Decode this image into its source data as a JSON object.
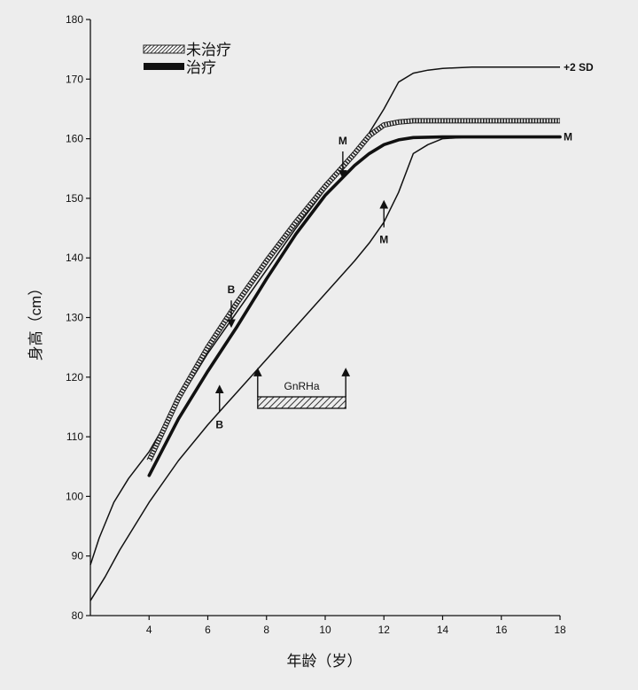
{
  "chart_data": {
    "type": "line",
    "title": "",
    "xlabel": "年龄（岁）",
    "ylabel": "身高（cm）",
    "xlim": [
      2,
      18
    ],
    "ylim": [
      80,
      180
    ],
    "xticks": [
      4,
      6,
      8,
      10,
      12,
      14,
      16,
      18
    ],
    "yticks": [
      80,
      90,
      100,
      110,
      120,
      130,
      140,
      150,
      160,
      170,
      180
    ],
    "legend": {
      "placement": "top-left",
      "entries": [
        {
          "label": "未治疗",
          "style": "hatched-thick"
        },
        {
          "label": "治疗",
          "style": "solid-thick"
        }
      ]
    },
    "series": [
      {
        "name": "+2 SD",
        "style": "thin",
        "x": [
          2,
          2.3,
          2.8,
          3.3,
          4,
          5,
          6,
          7,
          8,
          9,
          10,
          11,
          11.5,
          12,
          12.5,
          13,
          13.5,
          14,
          15,
          16,
          18
        ],
        "y": [
          88.5,
          93,
          99,
          103,
          107.5,
          116,
          124,
          131,
          138,
          145,
          151.5,
          157.5,
          161,
          165,
          169.5,
          171,
          171.5,
          171.8,
          172,
          172,
          172
        ]
      },
      {
        "name": "M",
        "style": "thin",
        "x": [
          2,
          2.5,
          3,
          4,
          5,
          6,
          7,
          8,
          9,
          10,
          11,
          11.5,
          12,
          12.5,
          13,
          13.5,
          14,
          15,
          16,
          18
        ],
        "y": [
          82.5,
          86.5,
          91,
          99,
          106,
          112,
          117.5,
          123,
          128.5,
          134,
          139.5,
          142.5,
          146,
          151,
          157.5,
          159,
          160,
          160.3,
          160.3,
          160.3
        ]
      },
      {
        "name": "未治疗",
        "style": "hatched",
        "x": [
          4,
          5,
          6,
          7,
          8,
          9,
          10,
          11,
          11.5,
          12,
          12.5,
          13,
          14,
          15,
          16,
          18
        ],
        "y": [
          106,
          116.5,
          125,
          132.5,
          139.5,
          146,
          152,
          157.5,
          160.5,
          162.3,
          162.8,
          163,
          163,
          163,
          163,
          163
        ]
      },
      {
        "name": "治疗",
        "style": "solid",
        "x": [
          4,
          5,
          6,
          7,
          8,
          9,
          10,
          11,
          11.5,
          12,
          12.5,
          13,
          14,
          15,
          16,
          18
        ],
        "y": [
          103.5,
          113,
          121,
          128.5,
          136.5,
          144,
          150.5,
          155.5,
          157.5,
          159,
          159.8,
          160.2,
          160.3,
          160.3,
          160.3,
          160.3
        ]
      }
    ],
    "end_labels": [
      {
        "text": "+2 SD",
        "x": 18,
        "y": 172
      },
      {
        "text": "M",
        "x": 18,
        "y": 160.3
      }
    ],
    "annotations": [
      {
        "text": "B",
        "x": 6.8,
        "y": 129,
        "direction": "down"
      },
      {
        "text": "B",
        "x": 6.4,
        "y": 118,
        "direction": "up"
      },
      {
        "text": "M",
        "x": 10.6,
        "y": 154,
        "direction": "down"
      },
      {
        "text": "M",
        "x": 12,
        "y": 149,
        "direction": "up"
      }
    ],
    "treatment_bar": {
      "label": "GnRHa",
      "x_start": 7.7,
      "x_end": 10.7
    }
  }
}
